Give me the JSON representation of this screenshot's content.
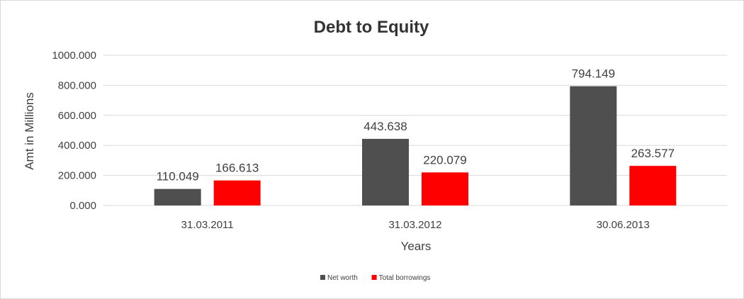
{
  "chart_data": {
    "type": "bar",
    "title": "Debt to Equity",
    "xlabel": "Years",
    "ylabel": "Amt in Millions",
    "categories": [
      "31.03.2011",
      "31.03.2012",
      "30.06.2013"
    ],
    "series": [
      {
        "name": "Net worth",
        "color": "#4f4f4f",
        "values": [
          110.049,
          443.638,
          794.149
        ],
        "labels": [
          "110.049",
          "443.638",
          "794.149"
        ]
      },
      {
        "name": "Total borrowings",
        "color": "#ff0000",
        "values": [
          166.613,
          220.079,
          263.577
        ],
        "labels": [
          "166.613",
          "220.079",
          "263.577"
        ]
      }
    ],
    "ylim": [
      0,
      1000
    ],
    "yticks": [
      0,
      200,
      400,
      600,
      800,
      1000
    ],
    "ytick_labels": [
      "0.000",
      "200.000",
      "400.000",
      "600.000",
      "800.000",
      "1000.000"
    ],
    "grid": true,
    "legend_position": "bottom"
  }
}
